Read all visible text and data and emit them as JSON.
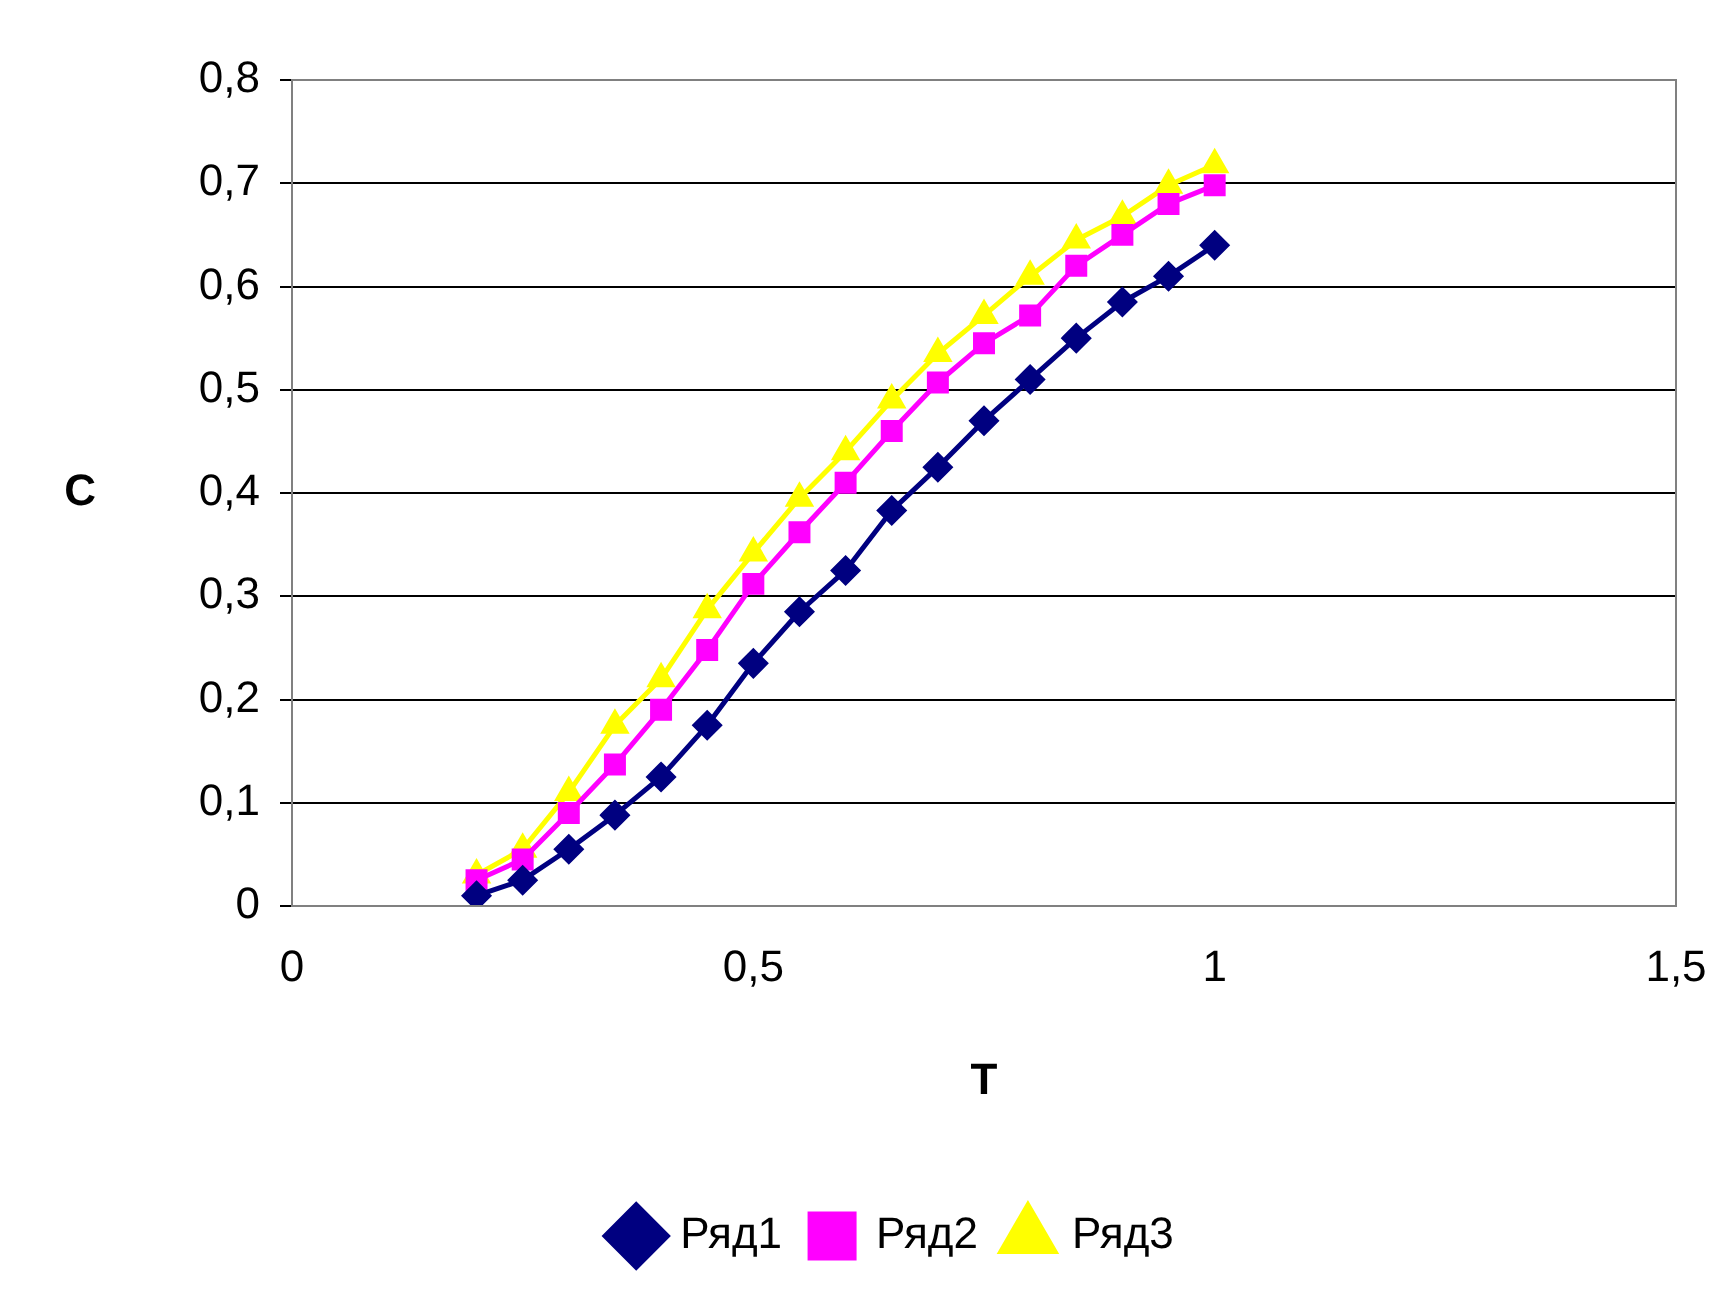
{
  "chart_data": {
    "type": "line",
    "xlabel": "T",
    "ylabel": "C",
    "xlim": [
      0,
      1.5
    ],
    "xticks": [
      0,
      {
        "value": 0.5,
        "label": "0,5"
      },
      1,
      {
        "value": 1.5,
        "label": "1,5"
      }
    ],
    "ylim": [
      0,
      0.8
    ],
    "yticks": [
      0,
      {
        "value": 0.1,
        "label": "0,1"
      },
      {
        "value": 0.2,
        "label": "0,2"
      },
      {
        "value": 0.3,
        "label": "0,3"
      },
      {
        "value": 0.4,
        "label": "0,4"
      },
      {
        "value": 0.5,
        "label": "0,5"
      },
      {
        "value": 0.6,
        "label": "0,6"
      },
      {
        "value": 0.7,
        "label": "0,7"
      },
      {
        "value": 0.8,
        "label": "0,8"
      }
    ],
    "grid": "y",
    "legend": "bottom",
    "line_style": "solid",
    "x": [
      0.2,
      0.25,
      0.3,
      0.35,
      0.4,
      0.45,
      0.5,
      0.55,
      0.6,
      0.65,
      0.7,
      0.75,
      0.8,
      0.85,
      0.9,
      0.95,
      1.0
    ],
    "series": [
      {
        "name": "Ряд1",
        "color": "#000080",
        "marker": "diamond",
        "values": [
          0.01,
          0.025,
          0.055,
          0.088,
          0.125,
          0.175,
          0.235,
          0.285,
          0.325,
          0.383,
          0.425,
          0.47,
          0.51,
          0.55,
          0.585,
          0.61,
          0.64
        ]
      },
      {
        "name": "Ряд2",
        "color": "#ff00ff",
        "marker": "square",
        "values": [
          0.025,
          0.045,
          0.09,
          0.137,
          0.19,
          0.248,
          0.312,
          0.362,
          0.41,
          0.46,
          0.507,
          0.545,
          0.572,
          0.62,
          0.65,
          0.68,
          0.698
        ]
      },
      {
        "name": "Ряд3",
        "color": "#ffff00",
        "marker": "triangle",
        "values": [
          0.03,
          0.055,
          0.11,
          0.175,
          0.22,
          0.287,
          0.342,
          0.395,
          0.44,
          0.49,
          0.535,
          0.572,
          0.61,
          0.645,
          0.668,
          0.698,
          0.718
        ]
      }
    ]
  }
}
